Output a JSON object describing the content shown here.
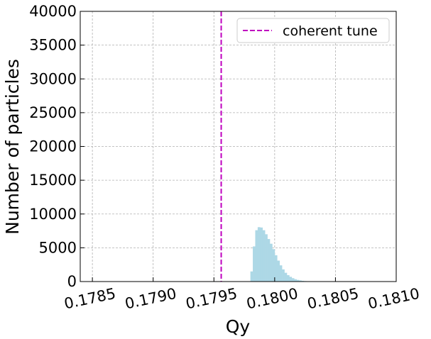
{
  "chart_data": {
    "type": "bar",
    "xlabel": "Qy",
    "ylabel": "Number of particles",
    "xlim": [
      0.1784,
      0.181
    ],
    "ylim": [
      0,
      40000
    ],
    "xticks": [
      0.1785,
      0.179,
      0.1795,
      0.18,
      0.1805,
      0.181
    ],
    "xtick_labels": [
      "0.1785",
      "0.1790",
      "0.1795",
      "0.1800",
      "0.1805",
      "0.1810"
    ],
    "yticks": [
      0,
      5000,
      10000,
      15000,
      20000,
      25000,
      30000,
      35000,
      40000
    ],
    "ytick_labels": [
      "0",
      "5000",
      "10000",
      "15000",
      "20000",
      "25000",
      "30000",
      "35000",
      "40000"
    ],
    "grid": true,
    "legend_position": "top-right",
    "coherent_tune": {
      "label": "coherent tune",
      "x": 0.17956,
      "color": "#bf00bf"
    },
    "histogram": {
      "color": "#add8e6",
      "bin_edges": [
        0.1798,
        0.17982,
        0.17984,
        0.17986,
        0.17988,
        0.1799,
        0.17992,
        0.17994,
        0.17996,
        0.17998,
        0.18,
        0.18002,
        0.18004,
        0.18006,
        0.18008,
        0.1801,
        0.18012,
        0.18014,
        0.18016,
        0.18018,
        0.1802,
        0.18022,
        0.18024,
        0.18026,
        0.18028,
        0.1803,
        0.18032
      ],
      "counts": [
        1500,
        5200,
        7600,
        8050,
        8000,
        7600,
        7000,
        6300,
        5600,
        4800,
        3900,
        3100,
        2400,
        1800,
        1300,
        950,
        700,
        500,
        350,
        250,
        170,
        110,
        70,
        40,
        20,
        10
      ]
    }
  }
}
